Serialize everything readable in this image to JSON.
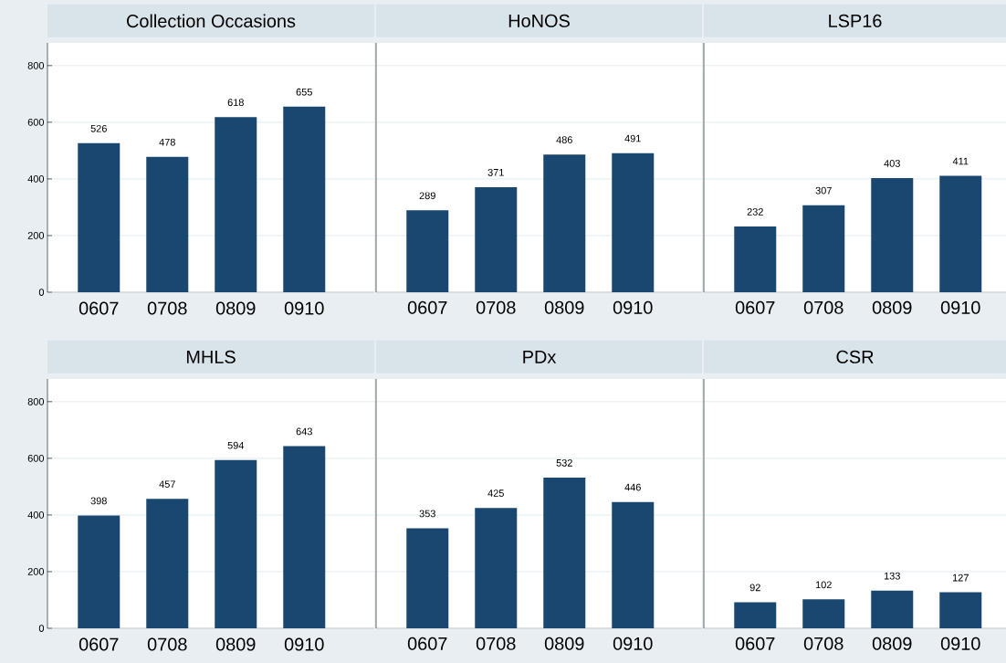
{
  "chart_data": [
    {
      "type": "bar",
      "title": "Collection Occasions",
      "categories": [
        "0607",
        "0708",
        "0809",
        "0910"
      ],
      "values": [
        526,
        478,
        618,
        655
      ],
      "color": "#1a476f",
      "ylim": [
        0,
        880
      ],
      "yticks": [
        0,
        200,
        400,
        600,
        800
      ],
      "grid": "y",
      "data_labels": true
    },
    {
      "type": "bar",
      "title": "HoNOS",
      "categories": [
        "0607",
        "0708",
        "0809",
        "0910"
      ],
      "values": [
        289,
        371,
        486,
        491
      ],
      "color": "#1a476f",
      "ylim": [
        0,
        880
      ],
      "yticks": [
        0,
        200,
        400,
        600,
        800
      ],
      "grid": "y",
      "data_labels": true,
      "tick_labels": "x"
    },
    {
      "type": "bar",
      "title": "LSP16",
      "categories": [
        "0607",
        "0708",
        "0809",
        "0910"
      ],
      "values": [
        232,
        307,
        403,
        411
      ],
      "color": "#1a476f",
      "ylim": [
        0,
        880
      ],
      "yticks": [
        0,
        200,
        400,
        600,
        800
      ],
      "grid": "y",
      "data_labels": true,
      "tick_labels": "x"
    },
    {
      "type": "bar",
      "title": "MHLS",
      "categories": [
        "0607",
        "0708",
        "0809",
        "0910"
      ],
      "values": [
        398,
        457,
        594,
        643
      ],
      "color": "#1a476f",
      "ylim": [
        0,
        880
      ],
      "yticks": [
        0,
        200,
        400,
        600,
        800
      ],
      "grid": "y",
      "data_labels": true
    },
    {
      "type": "bar",
      "title": "PDx",
      "categories": [
        "0607",
        "0708",
        "0809",
        "0910"
      ],
      "values": [
        353,
        425,
        532,
        446
      ],
      "color": "#1a476f",
      "ylim": [
        0,
        880
      ],
      "yticks": [
        0,
        200,
        400,
        600,
        800
      ],
      "grid": "y",
      "data_labels": true,
      "tick_labels": "x"
    },
    {
      "type": "bar",
      "title": "CSR",
      "categories": [
        "0607",
        "0708",
        "0809",
        "0910"
      ],
      "values": [
        92,
        102,
        133,
        127
      ],
      "color": "#1a476f",
      "ylim": [
        0,
        880
      ],
      "yticks": [
        0,
        200,
        400,
        600,
        800
      ],
      "grid": "y",
      "data_labels": true,
      "tick_labels": "x"
    }
  ]
}
